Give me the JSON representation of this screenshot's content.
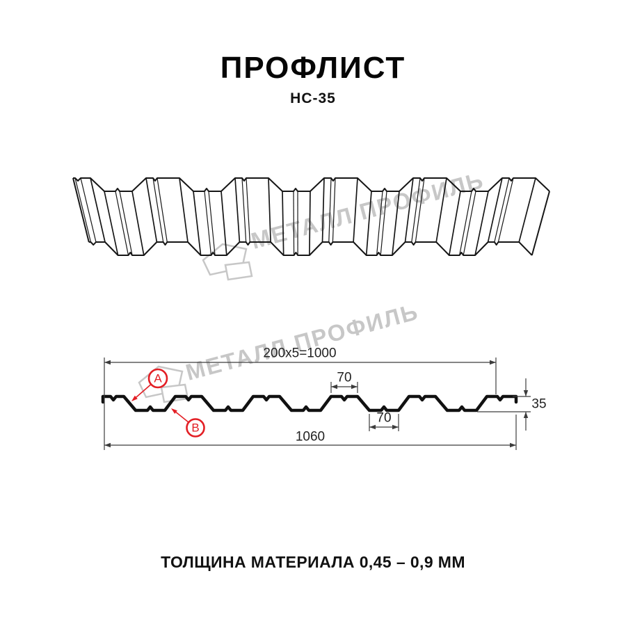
{
  "header": {
    "title": "ПРОФЛИСТ",
    "subtitle": "НС-35"
  },
  "watermark": {
    "brand": "МЕТАЛЛ ПРОФИЛЬ"
  },
  "drawing": {
    "dim_top_pitch": "200x5=1000",
    "dim_crest_width": "70",
    "dim_valley_width": "70",
    "dim_profile_height": "35",
    "dim_overall_width": "1060",
    "callout_a": "A",
    "callout_b": "B"
  },
  "footer": {
    "thickness_note": "ТОЛЩИНА МАТЕРИАЛА 0,45 – 0,9 ММ"
  },
  "colors": {
    "accent_red": "#e31e24",
    "drawing_line": "#161616",
    "dimension_line": "#3c3c3c",
    "watermark_gray": "#c7c7c7"
  }
}
